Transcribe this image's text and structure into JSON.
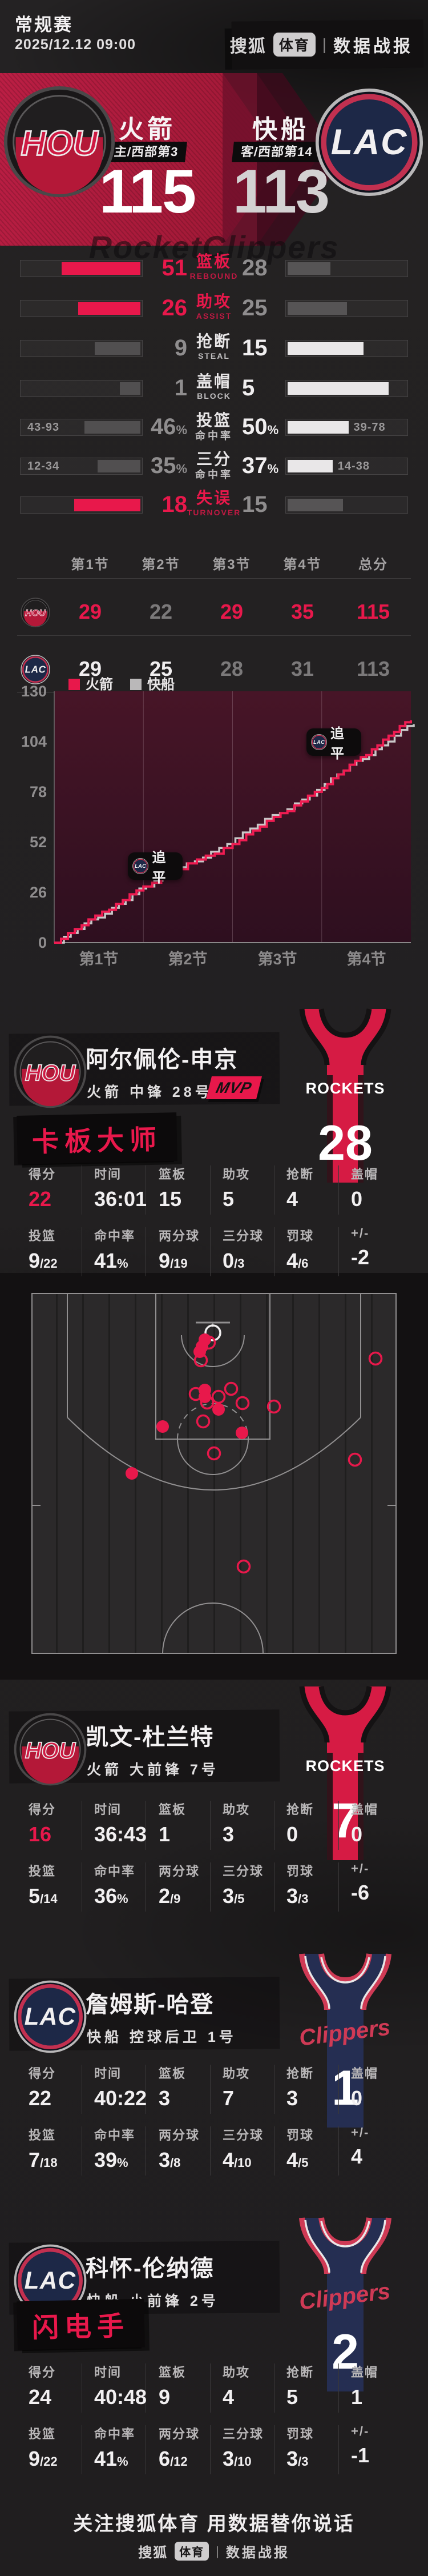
{
  "page": {
    "bg": "#232122",
    "accent": "#e8184b",
    "away_line": "#c9c7c8"
  },
  "header": {
    "league": "常规赛",
    "datetime": "2025/12.12 09:00",
    "brand": {
      "sohu": "搜狐",
      "sports": "体育",
      "divider": "|",
      "report": "数据战报"
    }
  },
  "scoreboard": {
    "home": {
      "abbr": "HOU",
      "name": "火箭",
      "seed": "主/西部第3",
      "score": "115"
    },
    "away": {
      "abbr": "LAC",
      "name": "快船",
      "seed": "客/西部第14",
      "score": "113"
    },
    "watermark": "RocketClippers"
  },
  "team_stats": {
    "rows": [
      {
        "label": "篮板",
        "sub": "REBOUND",
        "left": "51",
        "right": "28",
        "winner": "left",
        "type": "count"
      },
      {
        "label": "助攻",
        "sub": "ASSIST",
        "left": "26",
        "right": "25",
        "winner": "left",
        "type": "count"
      },
      {
        "label": "抢断",
        "sub": "STEAL",
        "left": "9",
        "right": "15",
        "winner": "right",
        "type": "count"
      },
      {
        "label": "盖帽",
        "sub": "BLOCK",
        "left": "1",
        "right": "5",
        "winner": "right",
        "type": "count"
      },
      {
        "label": "投篮",
        "sub": "命中率",
        "left": "46%",
        "right": "50%",
        "left_detail": "43-93",
        "right_detail": "39-78",
        "winner": "right",
        "type": "pct"
      },
      {
        "label": "三分",
        "sub": "命中率",
        "left": "35%",
        "right": "37%",
        "left_detail": "12-34",
        "right_detail": "14-38",
        "winner": "right",
        "type": "pct"
      },
      {
        "label": "失误",
        "sub": "TURNOVER",
        "left": "18",
        "right": "15",
        "winner": "left",
        "type": "count"
      }
    ]
  },
  "quarters": {
    "headers": [
      "第1节",
      "第2节",
      "第3节",
      "第4节",
      "总分"
    ],
    "rows": [
      {
        "team": "HOU",
        "values": [
          "29",
          "22",
          "29",
          "35",
          "115"
        ],
        "highlight": [
          true,
          false,
          true,
          true,
          true
        ]
      },
      {
        "team": "LAC",
        "values": [
          "29",
          "25",
          "28",
          "31",
          "113"
        ],
        "highlight": [
          true,
          true,
          false,
          false,
          false
        ]
      }
    ]
  },
  "chart_data": [
    {
      "type": "line",
      "subtype": "step-cumulative-score",
      "title": "",
      "legend": [
        {
          "name": "火箭",
          "color": "#e8184b"
        },
        {
          "name": "快船",
          "color": "#bab8b9"
        }
      ],
      "x_categories": [
        "第1节",
        "第2节",
        "第3节",
        "第4节"
      ],
      "y_ticks": [
        130,
        104,
        78,
        52,
        26,
        0
      ],
      "ylim": [
        0,
        130
      ],
      "grid": "vertical-quarter-lines",
      "legend_position": "top-left",
      "series": [
        {
          "name": "火箭",
          "color": "#ef1c52",
          "cumulative_by_quarter": [
            0,
            29,
            51,
            80,
            115
          ]
        },
        {
          "name": "快船",
          "color": "#c9c7c8",
          "cumulative_by_quarter": [
            0,
            29,
            54,
            82,
            113
          ]
        }
      ],
      "annotations": [
        {
          "team": "LAC",
          "label": "追平",
          "quarter": 2,
          "score": 40
        },
        {
          "team": "LAC",
          "label": "追平",
          "quarter": 4,
          "score": 104
        }
      ]
    },
    {
      "type": "scatter",
      "subtype": "shot-chart",
      "player": "阿尔佩伦-申京",
      "made_color": "#e8184b",
      "missed_style": "hollow",
      "court_size": [
        640,
        632
      ],
      "made": [
        [
          304,
          82
        ],
        [
          299,
          94
        ],
        [
          295,
          103
        ],
        [
          304,
          170
        ],
        [
          304,
          182
        ],
        [
          328,
          204
        ],
        [
          230,
          234
        ],
        [
          369,
          245
        ],
        [
          176,
          316
        ]
      ],
      "missed": [
        [
          311,
          87
        ],
        [
          297,
          118
        ],
        [
          603,
          115
        ],
        [
          350,
          168
        ],
        [
          288,
          177
        ],
        [
          328,
          182
        ],
        [
          308,
          192
        ],
        [
          370,
          193
        ],
        [
          425,
          199
        ],
        [
          301,
          225
        ],
        [
          320,
          281
        ],
        [
          567,
          292
        ],
        [
          372,
          479
        ]
      ],
      "hoop": [
        318,
        70
      ]
    }
  ],
  "players": [
    {
      "team": "HOU",
      "name": "阿尔佩伦-申京",
      "meta": "火箭  中锋  28号",
      "mvp": "MVP",
      "tag": "卡板大师",
      "jersey": {
        "brand": "ROCKETS",
        "number": "28"
      },
      "rows": [
        [
          {
            "label": "得分",
            "value": "22",
            "accent": true
          },
          {
            "label": "时间",
            "value": "36:01"
          },
          {
            "label": "篮板",
            "value": "15"
          },
          {
            "label": "助攻",
            "value": "5"
          },
          {
            "label": "抢断",
            "value": "4"
          },
          {
            "label": "盖帽",
            "value": "0"
          }
        ],
        [
          {
            "label": "投篮",
            "value": "9/22"
          },
          {
            "label": "命中率",
            "value": "41%"
          },
          {
            "label": "两分球",
            "value": "9/19"
          },
          {
            "label": "三分球",
            "value": "0/3"
          },
          {
            "label": "罚球",
            "value": "4/6"
          },
          {
            "label": "+/-",
            "value": "-2"
          }
        ]
      ]
    },
    {
      "team": "HOU",
      "name": "凯文-杜兰特",
      "meta": "火箭  大前锋  7号",
      "jersey": {
        "brand": "ROCKETS",
        "number": "7"
      },
      "rows": [
        [
          {
            "label": "得分",
            "value": "16",
            "accent": true
          },
          {
            "label": "时间",
            "value": "36:43"
          },
          {
            "label": "篮板",
            "value": "1"
          },
          {
            "label": "助攻",
            "value": "3"
          },
          {
            "label": "抢断",
            "value": "0"
          },
          {
            "label": "盖帽",
            "value": "0"
          }
        ],
        [
          {
            "label": "投篮",
            "value": "5/14"
          },
          {
            "label": "命中率",
            "value": "36%"
          },
          {
            "label": "两分球",
            "value": "2/9"
          },
          {
            "label": "三分球",
            "value": "3/5"
          },
          {
            "label": "罚球",
            "value": "3/3"
          },
          {
            "label": "+/-",
            "value": "-6"
          }
        ]
      ]
    },
    {
      "team": "LAC",
      "name": "詹姆斯-哈登",
      "meta": "快船  控球后卫  1号",
      "jersey": {
        "brand": "Clippers",
        "number": "1"
      },
      "rows": [
        [
          {
            "label": "得分",
            "value": "22"
          },
          {
            "label": "时间",
            "value": "40:22"
          },
          {
            "label": "篮板",
            "value": "3"
          },
          {
            "label": "助攻",
            "value": "7"
          },
          {
            "label": "抢断",
            "value": "3"
          },
          {
            "label": "盖帽",
            "value": "0"
          }
        ],
        [
          {
            "label": "投篮",
            "value": "7/18"
          },
          {
            "label": "命中率",
            "value": "39%"
          },
          {
            "label": "两分球",
            "value": "3/8"
          },
          {
            "label": "三分球",
            "value": "4/10"
          },
          {
            "label": "罚球",
            "value": "4/5"
          },
          {
            "label": "+/-",
            "value": "4"
          }
        ]
      ]
    },
    {
      "team": "LAC",
      "name": "科怀-伦纳德",
      "meta": "快船  小前锋  2号",
      "tag": "闪电手",
      "jersey": {
        "brand": "Clippers",
        "number": "2"
      },
      "rows": [
        [
          {
            "label": "得分",
            "value": "24"
          },
          {
            "label": "时间",
            "value": "40:48"
          },
          {
            "label": "篮板",
            "value": "9"
          },
          {
            "label": "助攻",
            "value": "4"
          },
          {
            "label": "抢断",
            "value": "5"
          },
          {
            "label": "盖帽",
            "value": "1"
          }
        ],
        [
          {
            "label": "投篮",
            "value": "9/22"
          },
          {
            "label": "命中率",
            "value": "41%"
          },
          {
            "label": "两分球",
            "value": "6/12"
          },
          {
            "label": "三分球",
            "value": "3/10"
          },
          {
            "label": "罚球",
            "value": "3/3"
          },
          {
            "label": "+/-",
            "value": "-1"
          }
        ]
      ]
    }
  ],
  "footer": {
    "slogan": "关注搜狐体育 用数据替你说话",
    "brand": {
      "sohu": "搜狐",
      "sports": "体育",
      "divider": "|",
      "report": "数据战报"
    }
  }
}
